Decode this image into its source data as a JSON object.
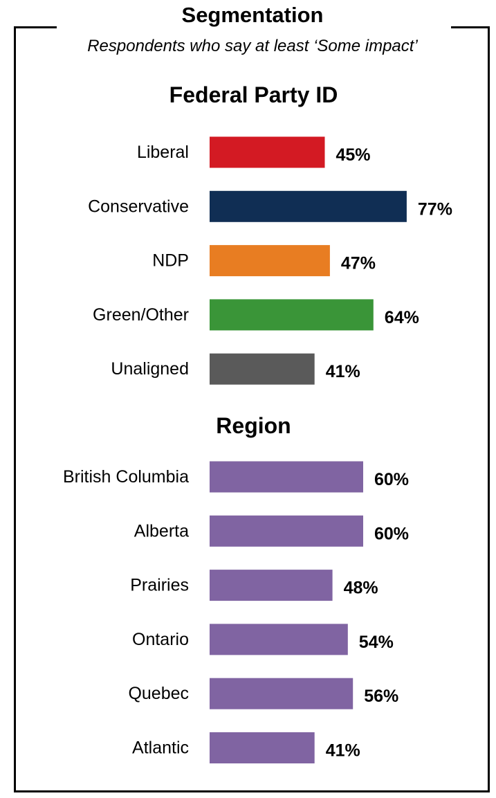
{
  "header": {
    "title": "Segmentation",
    "subtitle": "Respondents who say at least ‘Some impact’"
  },
  "chart_data": [
    {
      "type": "bar",
      "orientation": "horizontal",
      "title": "Federal Party ID",
      "categories": [
        "Liberal",
        "Conservative",
        "NDP",
        "Green/Other",
        "Unaligned"
      ],
      "values": [
        45,
        77,
        47,
        64,
        41
      ],
      "value_labels": [
        "45%",
        "77%",
        "47%",
        "64%",
        "41%"
      ],
      "colors": [
        "#D31A23",
        "#102E54",
        "#E87D22",
        "#3A9538",
        "#5A5A5A"
      ],
      "xlim": [
        0,
        100
      ],
      "grid": false
    },
    {
      "type": "bar",
      "orientation": "horizontal",
      "title": "Region",
      "categories": [
        "British Columbia",
        "Alberta",
        "Prairies",
        "Ontario",
        "Quebec",
        "Atlantic"
      ],
      "values": [
        60,
        60,
        48,
        54,
        56,
        41
      ],
      "value_labels": [
        "60%",
        "60%",
        "48%",
        "54%",
        "56%",
        "41%"
      ],
      "colors": [
        "#8064A2",
        "#8064A2",
        "#8064A2",
        "#8064A2",
        "#8064A2",
        "#8064A2"
      ],
      "xlim": [
        0,
        100
      ],
      "grid": false
    }
  ]
}
